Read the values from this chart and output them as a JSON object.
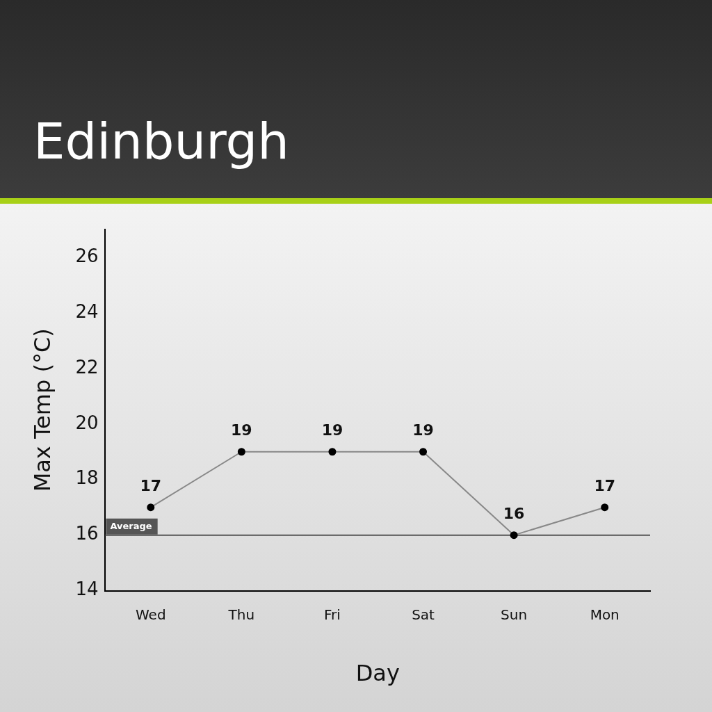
{
  "chart_data": {
    "type": "line",
    "title": "Edinburgh",
    "categories": [
      "Wed",
      "Thu",
      "Fri",
      "Sat",
      "Sun",
      "Mon"
    ],
    "values": [
      17,
      19,
      19,
      19,
      16,
      17
    ],
    "color": "#888888",
    "xlabel": "Day",
    "ylabel": "Max Temp (°C)",
    "ylim": [
      14,
      27
    ],
    "yticks": [
      14,
      16,
      18,
      20,
      22,
      24,
      26
    ],
    "data_labels": true,
    "marker": "circle",
    "ref_lines": [
      {
        "axis": "y",
        "value": 16,
        "label": "Average",
        "color": "#555555"
      }
    ]
  }
}
